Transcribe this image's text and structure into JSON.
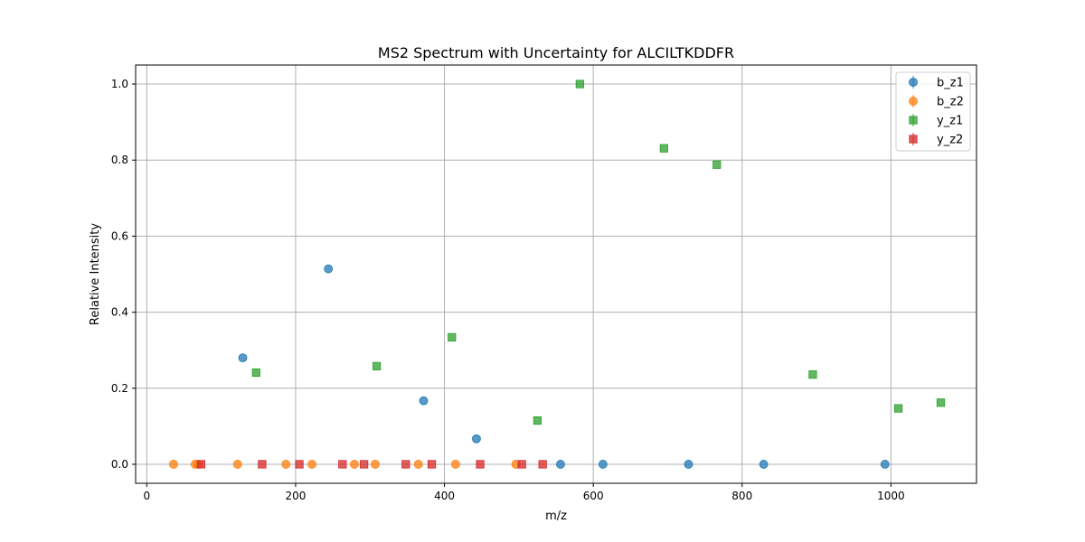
{
  "chart_data": {
    "type": "scatter",
    "title": "MS2 Spectrum with Uncertainty for ALCILTKDDFR",
    "xlabel": "m/z",
    "ylabel": "Relative Intensity",
    "xlim": [
      -15,
      1115
    ],
    "ylim": [
      -0.05,
      1.05
    ],
    "xticks": [
      0,
      200,
      400,
      600,
      800,
      1000
    ],
    "xtick_labels": [
      "0",
      "200",
      "400",
      "600",
      "800",
      "1000"
    ],
    "yticks": [
      0.0,
      0.2,
      0.4,
      0.6,
      0.8,
      1.0
    ],
    "ytick_labels": [
      "0.0",
      "0.2",
      "0.4",
      "0.6",
      "0.8",
      "1.0"
    ],
    "grid": true,
    "legend_position": "top-right",
    "series": [
      {
        "name": "b_z1",
        "color": "#1f77b4",
        "marker": "circle",
        "points": [
          {
            "x": 129,
            "y": 0.28
          },
          {
            "x": 244,
            "y": 0.514
          },
          {
            "x": 372,
            "y": 0.167
          },
          {
            "x": 443,
            "y": 0.067
          },
          {
            "x": 556,
            "y": 0.0
          },
          {
            "x": 613,
            "y": 0.0
          },
          {
            "x": 728,
            "y": 0.0
          },
          {
            "x": 829,
            "y": 0.0
          },
          {
            "x": 992,
            "y": 0.0
          }
        ]
      },
      {
        "name": "b_z2",
        "color": "#ff7f0e",
        "marker": "circle",
        "points": [
          {
            "x": 36,
            "y": 0.0
          },
          {
            "x": 65,
            "y": 0.0
          },
          {
            "x": 69,
            "y": 0.0
          },
          {
            "x": 122,
            "y": 0.0
          },
          {
            "x": 187,
            "y": 0.0
          },
          {
            "x": 222,
            "y": 0.0
          },
          {
            "x": 279,
            "y": 0.0
          },
          {
            "x": 307,
            "y": 0.0
          },
          {
            "x": 365,
            "y": 0.0
          },
          {
            "x": 415,
            "y": 0.0
          },
          {
            "x": 496,
            "y": 0.0
          }
        ]
      },
      {
        "name": "y_z1",
        "color": "#2ca02c",
        "marker": "square",
        "points": [
          {
            "x": 147,
            "y": 0.241
          },
          {
            "x": 309,
            "y": 0.258
          },
          {
            "x": 410,
            "y": 0.334
          },
          {
            "x": 525,
            "y": 0.115
          },
          {
            "x": 582,
            "y": 1.0
          },
          {
            "x": 695,
            "y": 0.831
          },
          {
            "x": 766,
            "y": 0.788
          },
          {
            "x": 895,
            "y": 0.236
          },
          {
            "x": 1010,
            "y": 0.147
          },
          {
            "x": 1067,
            "y": 0.162
          }
        ]
      },
      {
        "name": "y_z2",
        "color": "#d62728",
        "marker": "square",
        "points": [
          {
            "x": 73,
            "y": 0.0
          },
          {
            "x": 155,
            "y": 0.0
          },
          {
            "x": 205,
            "y": 0.0
          },
          {
            "x": 263,
            "y": 0.0
          },
          {
            "x": 292,
            "y": 0.0
          },
          {
            "x": 348,
            "y": 0.0
          },
          {
            "x": 383,
            "y": 0.0
          },
          {
            "x": 448,
            "y": 0.0
          },
          {
            "x": 504,
            "y": 0.0
          },
          {
            "x": 532,
            "y": 0.0
          }
        ]
      }
    ]
  }
}
